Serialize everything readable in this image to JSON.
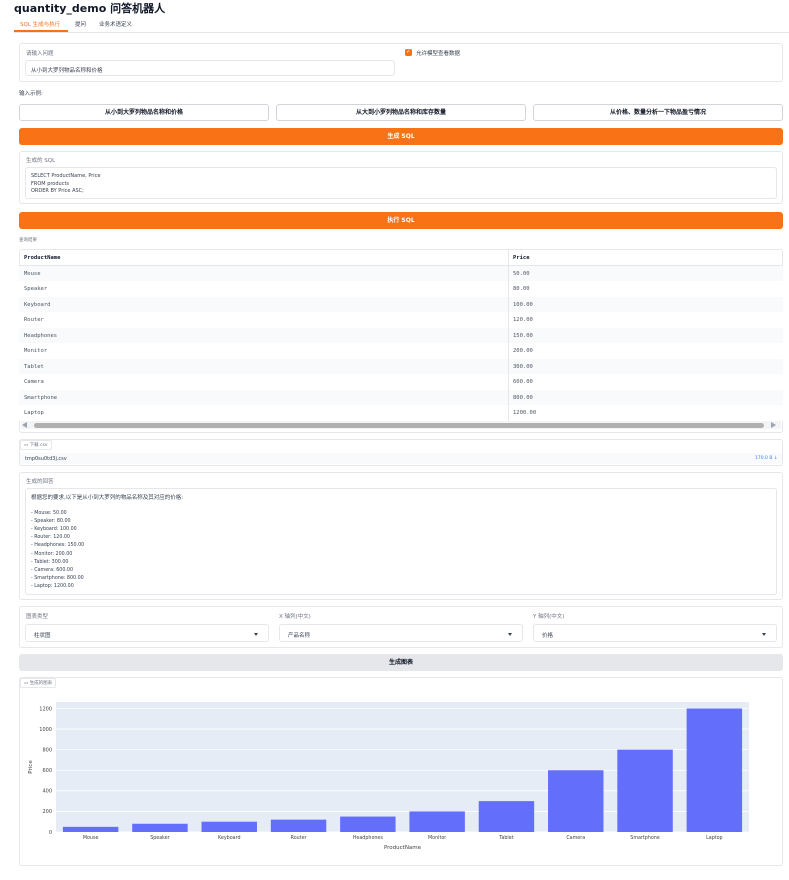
{
  "app": {
    "title": "quantity_demo 问答机器人"
  },
  "tabs": [
    {
      "label": "SQL 生成与执行"
    },
    {
      "label": "提问"
    },
    {
      "label": "业务术语定义"
    }
  ],
  "question": {
    "label": "请输入问题",
    "value": "从小到大罗列物品名称和价格",
    "allow_label": "允许模型查看数据"
  },
  "examples": {
    "label": "输入示例:",
    "items": [
      "从小到大罗列物品名称和价格",
      "从大到小罗列物品名称和库存数量",
      "从价格、数量分析一下物品盈亏情况"
    ]
  },
  "generate_sql_button": "生成 SQL",
  "generated_sql": {
    "label": "生成的 SQL",
    "lines": [
      "SELECT ProductName, Price",
      "FROM products",
      "ORDER BY Price ASC;"
    ]
  },
  "execute_sql_button": "执行 SQL",
  "results": {
    "label": "查询结果",
    "headers": [
      "ProductName",
      "Price"
    ],
    "rows": [
      [
        "Mouse",
        "50.00"
      ],
      [
        "Speaker",
        "80.00"
      ],
      [
        "Keyboard",
        "100.00"
      ],
      [
        "Router",
        "120.00"
      ],
      [
        "Headphones",
        "150.00"
      ],
      [
        "Monitor",
        "200.00"
      ],
      [
        "Tablet",
        "300.00"
      ],
      [
        "Camera",
        "600.00"
      ],
      [
        "Smartphone",
        "800.00"
      ],
      [
        "Laptop",
        "1200.00"
      ]
    ]
  },
  "download": {
    "label": "下载 csv",
    "filename": "tmp0su0td3j.csv",
    "size": "170.0 B"
  },
  "answer": {
    "label": "生成的回答",
    "intro": "根据您的要求,以下是从小到大罗列的物品名称及其对应的价格:",
    "lines": [
      "- Mouse: 50.00",
      "- Speaker: 80.00",
      "- Keyboard: 100.00",
      "- Router: 120.00",
      "- Headphones: 150.00",
      "- Monitor: 200.00",
      "- Tablet: 300.00",
      "- Camera: 600.00",
      "- Smartphone: 800.00",
      "- Laptop: 1200.00"
    ]
  },
  "chart_controls": {
    "type_label": "图表类型",
    "type_value": "柱状图",
    "x_label": "X 轴列(中文)",
    "x_value": "产品名称",
    "y_label": "Y 轴列(中文)",
    "y_value": "价格"
  },
  "generate_chart_button": "生成图表",
  "chart_panel_label": "生成的图表",
  "colors": {
    "accent": "#f97316",
    "bar": "#636efa",
    "plot_bg": "#e5ecf6"
  },
  "chart_data": {
    "type": "bar",
    "categories": [
      "Mouse",
      "Speaker",
      "Keyboard",
      "Router",
      "Headphones",
      "Monitor",
      "Tablet",
      "Camera",
      "Smartphone",
      "Laptop"
    ],
    "values": [
      50,
      80,
      100,
      120,
      150,
      200,
      300,
      600,
      800,
      1200
    ],
    "xlabel": "ProductName",
    "ylabel": "Price",
    "ylim": [
      0,
      1263
    ],
    "yticks": [
      "0",
      "200",
      "400",
      "600",
      "800",
      "1000",
      "1200"
    ],
    "grid": true
  }
}
